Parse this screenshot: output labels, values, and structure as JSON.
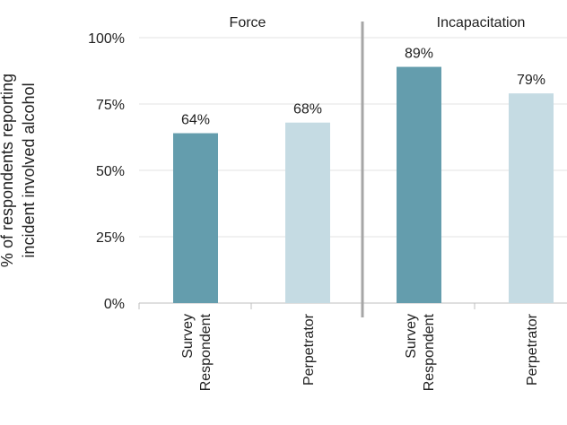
{
  "chart_data": {
    "type": "bar",
    "ylabel_lines": [
      "% of respondents reporting",
      "incident involved alcohol"
    ],
    "ylim": [
      0,
      100
    ],
    "yticks": [
      {
        "value": 0,
        "label": "0%"
      },
      {
        "value": 25,
        "label": "25%"
      },
      {
        "value": 50,
        "label": "50%"
      },
      {
        "value": 75,
        "label": "75%"
      },
      {
        "value": 100,
        "label": "100%"
      }
    ],
    "grid": true,
    "panels": [
      {
        "title": "Force",
        "bars": [
          {
            "category_lines": [
              "Survey",
              "Respondent"
            ],
            "value": 64,
            "label": "64%",
            "color": "#649dad"
          },
          {
            "category_lines": [
              "Perpetrator"
            ],
            "value": 68,
            "label": "68%",
            "color": "#c5dbe3"
          }
        ]
      },
      {
        "title": "Incapacitation",
        "bars": [
          {
            "category_lines": [
              "Survey",
              "Respondent"
            ],
            "value": 89,
            "label": "89%",
            "color": "#649dad"
          },
          {
            "category_lines": [
              "Perpetrator"
            ],
            "value": 79,
            "label": "79%",
            "color": "#c5dbe3"
          }
        ]
      }
    ]
  }
}
